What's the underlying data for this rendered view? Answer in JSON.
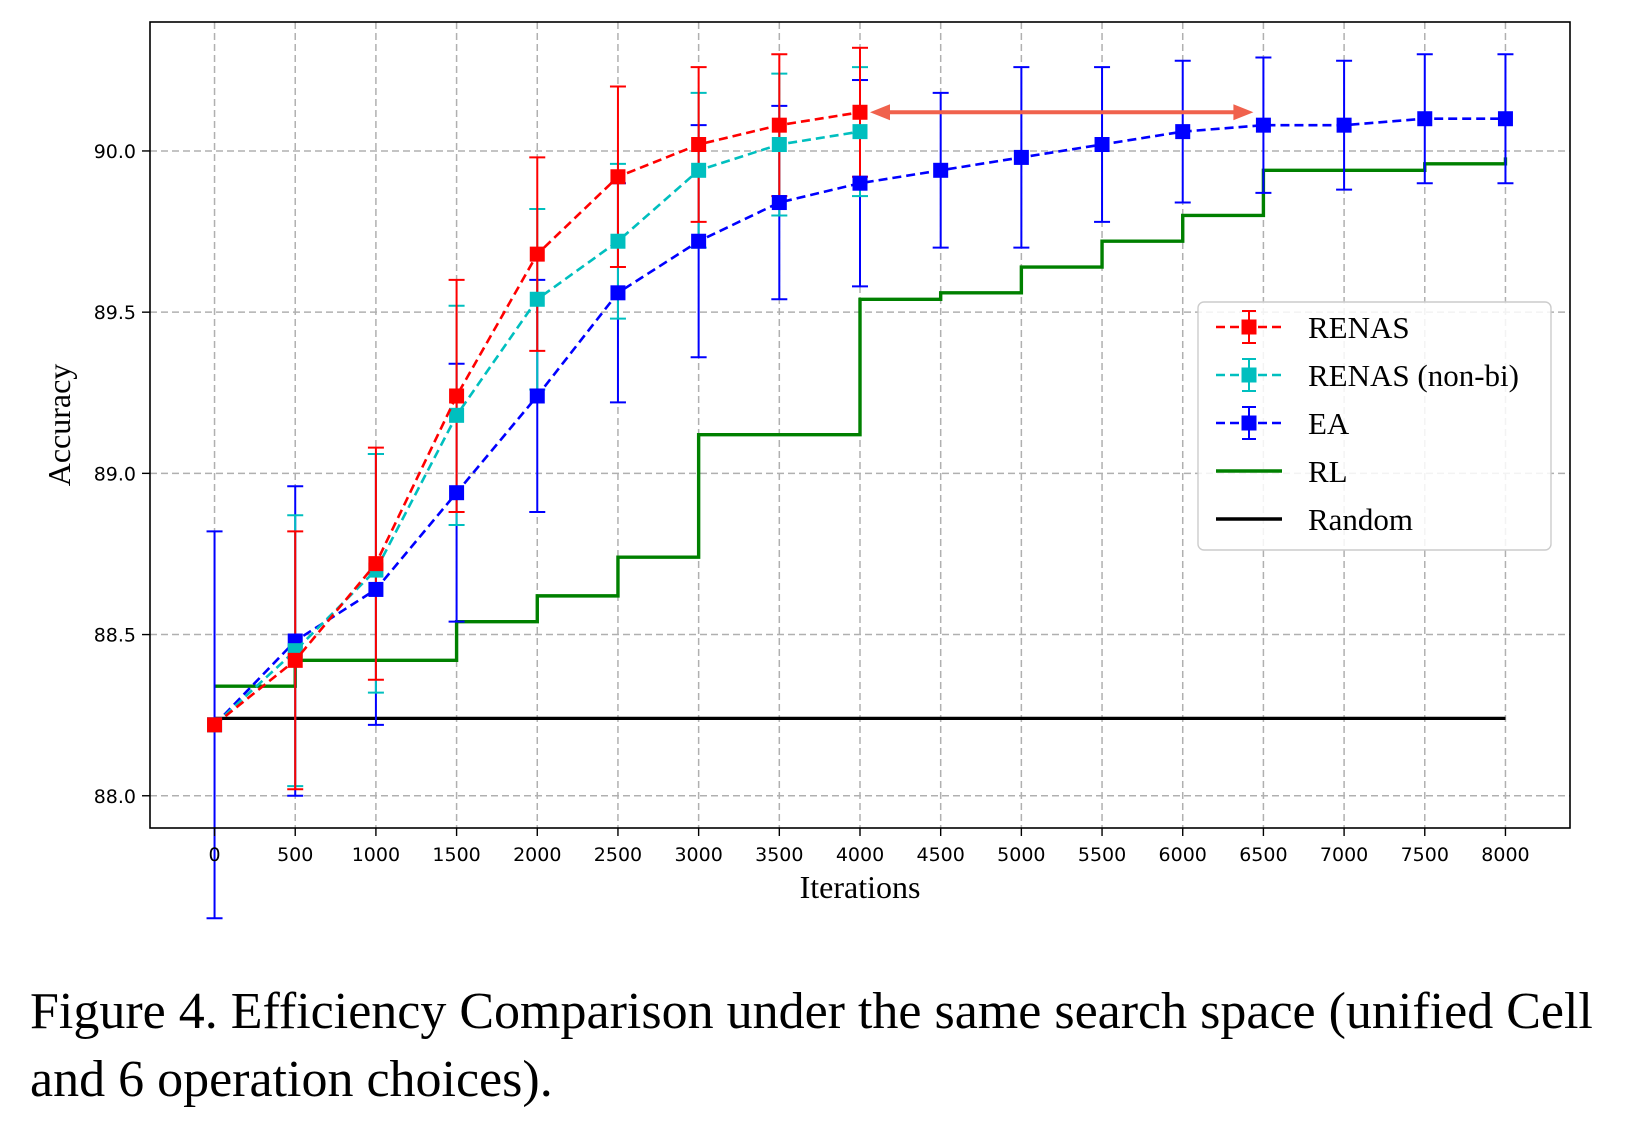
{
  "chart_data": {
    "type": "line",
    "xlabel": "Iterations",
    "ylabel": "Accuracy",
    "xticks": [
      0,
      500,
      1000,
      1500,
      2000,
      2500,
      3000,
      3500,
      4000,
      4500,
      5000,
      5500,
      6000,
      6500,
      7000,
      7500,
      8000
    ],
    "yticks": [
      88.0,
      88.5,
      89.0,
      89.5,
      90.0
    ],
    "ytick_labels": [
      "88.0",
      "88.5",
      "89.0",
      "89.5",
      "90.0"
    ],
    "xlim": [
      -400,
      8400
    ],
    "ylim": [
      87.9,
      90.4
    ],
    "grid": true,
    "legend_position": "center-right",
    "series": [
      {
        "name": "RENAS",
        "color": "#ff0000",
        "style": "dashed-square-errorbar",
        "x": [
          0,
          500,
          1000,
          1500,
          2000,
          2500,
          3000,
          3500,
          4000
        ],
        "y": [
          88.22,
          88.42,
          88.72,
          89.24,
          89.68,
          89.92,
          90.02,
          90.08,
          90.12
        ],
        "err_low": [
          88.22,
          88.02,
          88.36,
          88.88,
          89.38,
          89.64,
          89.78,
          89.86,
          89.92
        ],
        "err_high": [
          88.22,
          88.82,
          89.08,
          89.6,
          89.98,
          90.2,
          90.26,
          90.3,
          90.32
        ]
      },
      {
        "name": "RENAS (non-bi)",
        "color": "#00bfbf",
        "style": "dashed-square-errorbar",
        "x": [
          0,
          500,
          1000,
          1500,
          2000,
          2500,
          3000,
          3500,
          4000
        ],
        "y": [
          88.22,
          88.45,
          88.7,
          89.18,
          89.54,
          89.72,
          89.94,
          90.02,
          90.06
        ],
        "err_low": [
          88.22,
          88.03,
          88.32,
          88.84,
          89.26,
          89.48,
          89.7,
          89.8,
          89.86
        ],
        "err_high": [
          88.22,
          88.87,
          89.06,
          89.52,
          89.82,
          89.96,
          90.18,
          90.24,
          90.26
        ]
      },
      {
        "name": "EA",
        "color": "#0000ff",
        "style": "dashed-square-errorbar",
        "x": [
          0,
          500,
          1000,
          1500,
          2000,
          2500,
          3000,
          3500,
          4000,
          4500,
          5000,
          5500,
          6000,
          6500,
          7000,
          7500,
          8000
        ],
        "y": [
          88.22,
          88.48,
          88.64,
          88.94,
          89.24,
          89.56,
          89.72,
          89.84,
          89.9,
          89.94,
          89.98,
          90.02,
          90.06,
          90.08,
          90.08,
          90.1,
          90.1
        ],
        "err_low": [
          87.62,
          88.0,
          88.22,
          88.54,
          88.88,
          89.22,
          89.36,
          89.54,
          89.58,
          89.7,
          89.7,
          89.78,
          89.84,
          89.87,
          89.88,
          89.9,
          89.9
        ],
        "err_high": [
          88.82,
          88.96,
          89.06,
          89.34,
          89.6,
          89.9,
          90.08,
          90.14,
          90.22,
          90.18,
          90.26,
          90.26,
          90.28,
          90.29,
          90.28,
          90.3,
          90.3
        ]
      },
      {
        "name": "RL",
        "color": "#008000",
        "style": "step",
        "x": [
          0,
          500,
          1500,
          2000,
          2500,
          3000,
          4000,
          4500,
          5000,
          5500,
          6000,
          6500,
          7500,
          8000
        ],
        "y": [
          88.34,
          88.42,
          88.54,
          88.62,
          88.74,
          89.12,
          89.54,
          89.56,
          89.64,
          89.72,
          89.8,
          89.94,
          89.96,
          89.98
        ]
      },
      {
        "name": "Random",
        "color": "#000000",
        "style": "solid",
        "x": [
          0,
          8000
        ],
        "y": [
          88.24,
          88.24
        ]
      }
    ],
    "annotation": {
      "type": "double-arrow",
      "color": "#f0624d",
      "from": {
        "x": 4000,
        "y": 90.12
      },
      "to": {
        "x": 6500,
        "y": 90.12
      }
    }
  },
  "caption": "Figure 4. Efficiency Comparison under the same search space (unified Cell and 6 operation choices)."
}
